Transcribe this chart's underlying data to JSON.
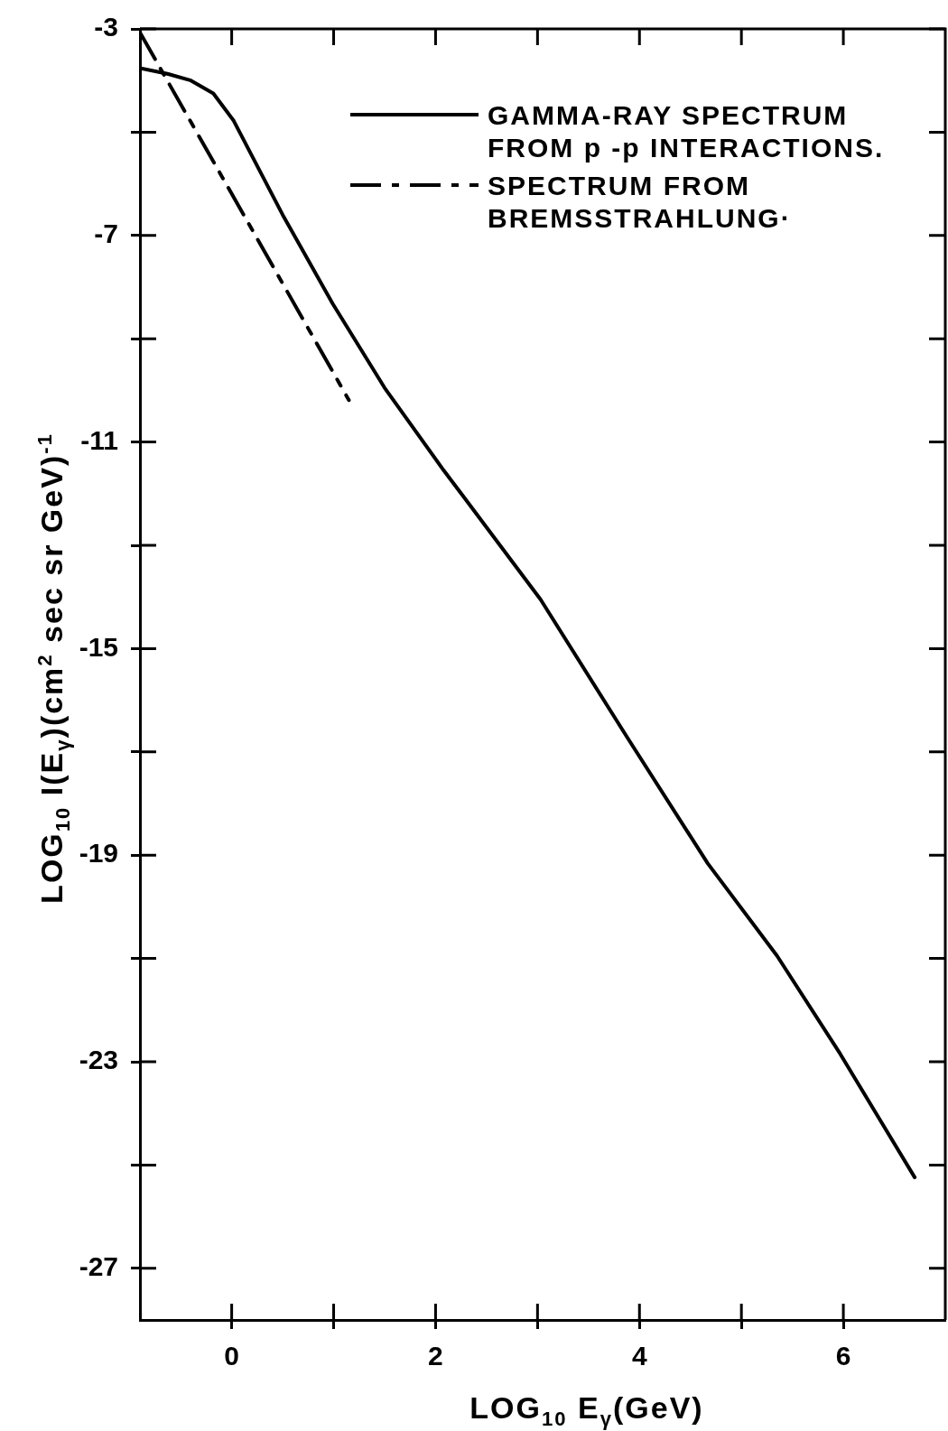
{
  "chart_data": {
    "type": "line",
    "xlabel": "LOG$_{10}$  E$_{γ}$(GeV)",
    "ylabel": "LOG$_{10}$ I(E$_{γ}$)(cm$^{2}$ sec sr GeV)$^{-1}$",
    "xlim": [
      -0.9,
      7
    ],
    "ylim": [
      -28,
      -3
    ],
    "xticks": [
      0,
      {
        "value": 1,
        "label": null
      },
      2,
      {
        "value": 3,
        "label": null
      },
      4,
      {
        "value": 5,
        "label": null
      },
      6
    ],
    "yticks": [
      -3,
      {
        "value": -5,
        "label": null
      },
      -7,
      {
        "value": -9,
        "label": null
      },
      -11,
      {
        "value": -13,
        "label": null
      },
      -15,
      {
        "value": -17,
        "label": null
      },
      -19,
      {
        "value": -21,
        "label": null
      },
      -23,
      {
        "value": -25,
        "label": null
      },
      -27
    ],
    "grid": false,
    "legend": "top right",
    "marker": "none",
    "series": [
      {
        "name": "GAMMA-RAY SPECTRUM FROM p -p INTERACTIONS.",
        "color": "#000000",
        "line_style": "solid",
        "x": [
          -0.9,
          -0.63,
          -0.4,
          -0.18,
          0.02,
          0.5,
          0.99,
          1.5,
          2.08,
          2.18,
          3.03,
          3.88,
          4.67,
          5.35,
          5.97,
          6.7
        ],
        "values": [
          -3.76,
          -3.87,
          -4.0,
          -4.25,
          -4.78,
          -6.6,
          -8.32,
          -9.95,
          -11.55,
          -11.81,
          -14.05,
          -16.72,
          -19.16,
          -20.95,
          -22.85,
          -25.24
        ]
      },
      {
        "name": "SPECTRUM FROM BREMSSTRAHLUNG·",
        "color": "#000000",
        "line_style": "dashed",
        "x": [
          -0.9,
          0.1,
          1.15
        ],
        "values": [
          -3.07,
          -6.54,
          -10.19
        ]
      }
    ]
  }
}
